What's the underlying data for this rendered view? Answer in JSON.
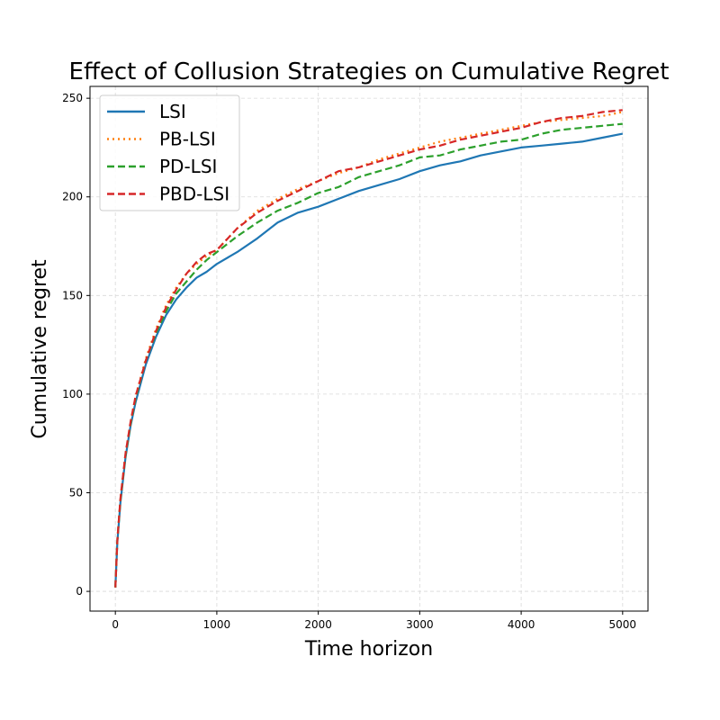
{
  "chart_data": {
    "type": "line",
    "title": "Effect of Collusion Strategies on Cumulative Regret",
    "xlabel": "Time horizon",
    "ylabel": "Cumulative regret",
    "xlim": [
      -250,
      5250
    ],
    "ylim": [
      -10,
      256
    ],
    "xticks": [
      0,
      1000,
      2000,
      3000,
      4000,
      5000
    ],
    "yticks": [
      0,
      50,
      100,
      150,
      200,
      250
    ],
    "xtick_labels": [
      "0",
      "1000",
      "2000",
      "3000",
      "4000",
      "5000"
    ],
    "ytick_labels": [
      "0",
      "50",
      "100",
      "150",
      "200",
      "250"
    ],
    "grid": true,
    "legend_position": "top-left",
    "series": [
      {
        "name": "LSI",
        "color": "#1f77b4",
        "style": "solid",
        "x": [
          0,
          20,
          50,
          100,
          150,
          200,
          300,
          400,
          500,
          600,
          700,
          800,
          900,
          1000,
          1200,
          1400,
          1600,
          1800,
          2000,
          2200,
          2400,
          2600,
          2800,
          3000,
          3200,
          3400,
          3600,
          3800,
          4000,
          4200,
          4400,
          4600,
          4800,
          5000
        ],
        "y": [
          2,
          25,
          45,
          68,
          84,
          96,
          115,
          129,
          140,
          148,
          154,
          159,
          162,
          166,
          172,
          179,
          187,
          192,
          195,
          199,
          203,
          206,
          209,
          213,
          216,
          218,
          221,
          223,
          225,
          226,
          227,
          228,
          230,
          232
        ]
      },
      {
        "name": "PB-LSI",
        "color": "#ff7f0e",
        "style": "dotted",
        "x": [
          0,
          20,
          50,
          100,
          150,
          200,
          300,
          400,
          500,
          600,
          700,
          800,
          900,
          1000,
          1200,
          1400,
          1600,
          1800,
          2000,
          2200,
          2400,
          2600,
          2800,
          3000,
          3200,
          3400,
          3600,
          3800,
          4000,
          4200,
          4400,
          4600,
          4800,
          5000
        ],
        "y": [
          2,
          26,
          47,
          70,
          86,
          99,
          118,
          133,
          145,
          154,
          161,
          166,
          170,
          173,
          184,
          193,
          199,
          204,
          208,
          212,
          215,
          219,
          222,
          225,
          228,
          230,
          232,
          234,
          236,
          238,
          239,
          240,
          241,
          243
        ]
      },
      {
        "name": "PD-LSI",
        "color": "#2ca02c",
        "style": "dashed",
        "x": [
          0,
          20,
          50,
          100,
          150,
          200,
          300,
          400,
          500,
          600,
          700,
          800,
          900,
          1000,
          1200,
          1400,
          1600,
          1800,
          2000,
          2200,
          2400,
          2600,
          2800,
          3000,
          3200,
          3400,
          3600,
          3800,
          4000,
          4200,
          4400,
          4600,
          4800,
          5000
        ],
        "y": [
          2,
          26,
          46,
          69,
          85,
          98,
          117,
          131,
          142,
          151,
          157,
          163,
          168,
          172,
          180,
          187,
          193,
          197,
          202,
          205,
          210,
          213,
          216,
          220,
          221,
          224,
          226,
          228,
          229,
          232,
          234,
          235,
          236,
          237
        ]
      },
      {
        "name": "PBD-LSI",
        "color": "#d62728",
        "style": "dashed",
        "x": [
          0,
          20,
          50,
          100,
          150,
          200,
          300,
          400,
          500,
          600,
          700,
          800,
          900,
          1000,
          1200,
          1400,
          1600,
          1800,
          2000,
          2200,
          2400,
          2600,
          2800,
          3000,
          3200,
          3400,
          3600,
          3800,
          4000,
          4200,
          4400,
          4600,
          4800,
          5000
        ],
        "y": [
          2,
          26,
          47,
          70,
          86,
          99,
          117,
          132,
          144,
          153,
          161,
          167,
          171,
          173,
          184,
          192,
          198,
          203,
          208,
          213,
          215,
          218,
          221,
          224,
          226,
          229,
          231,
          233,
          235,
          238,
          240,
          241,
          243,
          244
        ]
      }
    ]
  }
}
